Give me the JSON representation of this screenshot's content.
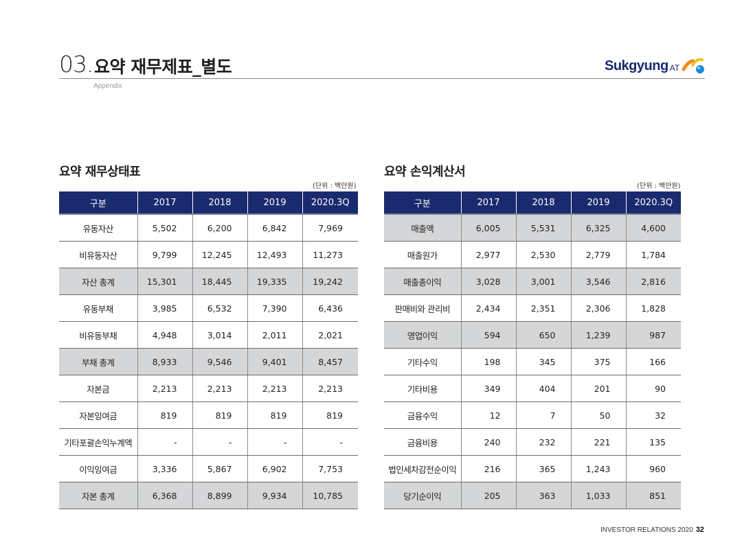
{
  "header": {
    "number": "03.",
    "title": "요약 재무제표_별도",
    "subtitle": "Appendix",
    "logo_text": "Sukgyung",
    "logo_suffix": "AT"
  },
  "balance_sheet": {
    "title": "요약 재무상태표",
    "unit": "(단위 : 백만원)",
    "columns": [
      "구분",
      "2017",
      "2018",
      "2019",
      "2020.3Q"
    ],
    "rows": [
      {
        "label": "유동자산",
        "values": [
          "5,502",
          "6,200",
          "6,842",
          "7,969"
        ],
        "highlight": false
      },
      {
        "label": "비유동자산",
        "values": [
          "9,799",
          "12,245",
          "12,493",
          "11,273"
        ],
        "highlight": false
      },
      {
        "label": "자산 총계",
        "values": [
          "15,301",
          "18,445",
          "19,335",
          "19,242"
        ],
        "highlight": true
      },
      {
        "label": "유동부채",
        "values": [
          "3,985",
          "6,532",
          "7,390",
          "6,436"
        ],
        "highlight": false
      },
      {
        "label": "비유동부채",
        "values": [
          "4,948",
          "3,014",
          "2,011",
          "2,021"
        ],
        "highlight": false
      },
      {
        "label": "부채 총계",
        "values": [
          "8,933",
          "9,546",
          "9,401",
          "8,457"
        ],
        "highlight": true
      },
      {
        "label": "자본금",
        "values": [
          "2,213",
          "2,213",
          "2,213",
          "2,213"
        ],
        "highlight": false
      },
      {
        "label": "자본잉여금",
        "values": [
          "819",
          "819",
          "819",
          "819"
        ],
        "highlight": false
      },
      {
        "label": "기타포괄손익누계액",
        "values": [
          "-",
          "-",
          "-",
          "-"
        ],
        "highlight": false
      },
      {
        "label": "이익잉여금",
        "values": [
          "3,336",
          "5,867",
          "6,902",
          "7,753"
        ],
        "highlight": false
      },
      {
        "label": "자본 총계",
        "values": [
          "6,368",
          "8,899",
          "9,934",
          "10,785"
        ],
        "highlight": true
      }
    ]
  },
  "income_statement": {
    "title": "요약 손익계산서",
    "unit": "(단위 : 백만원)",
    "columns": [
      "구분",
      "2017",
      "2018",
      "2019",
      "2020.3Q"
    ],
    "rows": [
      {
        "label": "매출액",
        "values": [
          "6,005",
          "5,531",
          "6,325",
          "4,600"
        ],
        "highlight": true
      },
      {
        "label": "매출원가",
        "values": [
          "2,977",
          "2,530",
          "2,779",
          "1,784"
        ],
        "highlight": false
      },
      {
        "label": "매출총이익",
        "values": [
          "3,028",
          "3,001",
          "3,546",
          "2,816"
        ],
        "highlight": true
      },
      {
        "label": "판매비와 관리비",
        "values": [
          "2,434",
          "2,351",
          "2,306",
          "1,828"
        ],
        "highlight": false
      },
      {
        "label": "영업이익",
        "values": [
          "594",
          "650",
          "1,239",
          "987"
        ],
        "highlight": true
      },
      {
        "label": "기타수익",
        "values": [
          "198",
          "345",
          "375",
          "166"
        ],
        "highlight": false
      },
      {
        "label": "기타비용",
        "values": [
          "349",
          "404",
          "201",
          "90"
        ],
        "highlight": false
      },
      {
        "label": "금융수익",
        "values": [
          "12",
          "7",
          "50",
          "32"
        ],
        "highlight": false
      },
      {
        "label": "금융비용",
        "values": [
          "240",
          "232",
          "221",
          "135"
        ],
        "highlight": false
      },
      {
        "label": "법인세차감전순이익",
        "values": [
          "216",
          "365",
          "1,243",
          "960"
        ],
        "highlight": false
      },
      {
        "label": "당기순이익",
        "values": [
          "205",
          "363",
          "1,033",
          "851"
        ],
        "highlight": true
      }
    ]
  },
  "footer": {
    "text": "INVESTOR RELATIONS 2020",
    "page": "32"
  },
  "colors": {
    "header_bg": "#1a2a6e",
    "highlight_row": "#d5d6d8"
  }
}
